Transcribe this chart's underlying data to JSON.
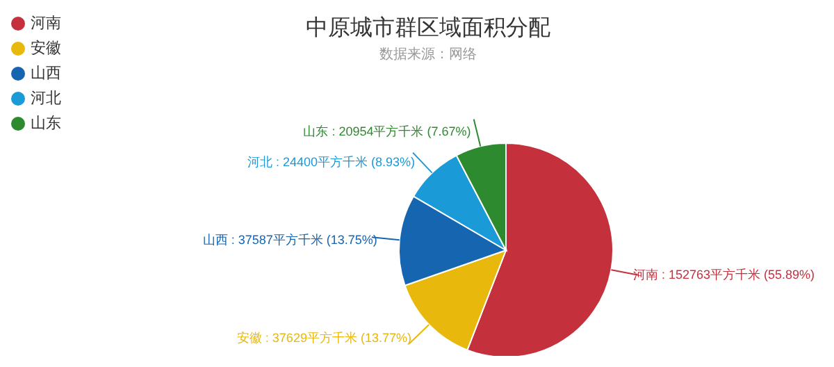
{
  "chart_data": {
    "type": "pie",
    "title": "中原城市群区域面积分配",
    "subtitle": "数据来源：网络",
    "categories": [
      "河南",
      "安徽",
      "山西",
      "河北",
      "山东"
    ],
    "values": [
      152763,
      37629,
      37587,
      24400,
      20954
    ],
    "colors": [
      "#c4303b",
      "#e8b80c",
      "#1565b0",
      "#1b9ad8",
      "#2e8a2e"
    ],
    "value_labels": [
      "河南 : 152763平方千米 (55.89%)",
      "安徽 : 37629平方千米 (13.77%)",
      "山西 : 37587平方千米 (13.75%)",
      "河北 : 24400平方千米 (8.93%)",
      "山东 : 20954平方千米 (7.67%)"
    ],
    "legend": "top left"
  }
}
